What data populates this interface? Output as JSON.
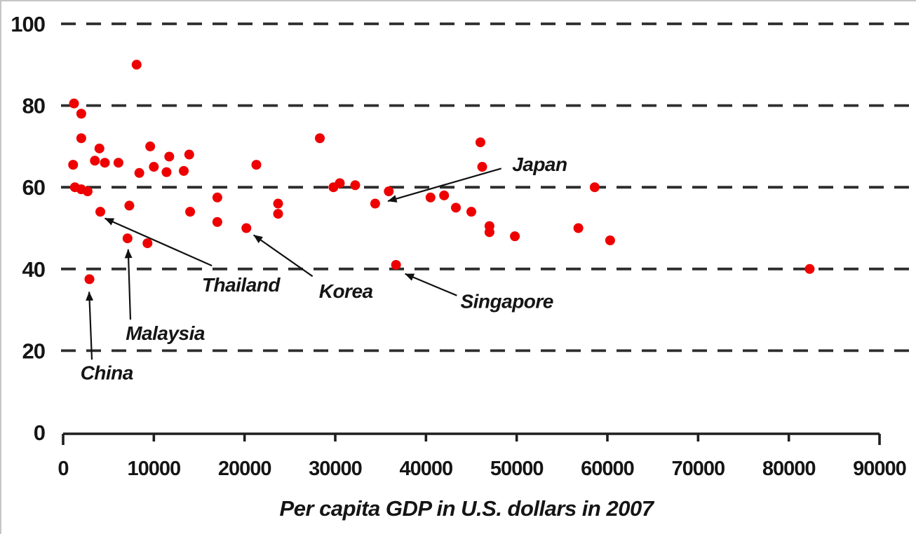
{
  "figure": {
    "background": "#ffffff",
    "edge_border_color": "#c6c6c6"
  },
  "chart_data": {
    "type": "scatter",
    "title": "",
    "xlabel": "Per capita GDP in U.S. dollars in 2007",
    "ylabel": "",
    "xlim": [
      0,
      90000
    ],
    "ylim": [
      0,
      100
    ],
    "x_ticks": [
      0,
      10000,
      20000,
      30000,
      40000,
      50000,
      60000,
      70000,
      80000,
      90000
    ],
    "y_ticks": [
      0,
      20,
      40,
      60,
      80,
      100
    ],
    "grid": {
      "horizontal": true,
      "style": "dashed",
      "color": "#2e2e2e",
      "skip_at": 0
    },
    "axis_color": "#1f1f1f",
    "arrow_color": "#111111",
    "point_color": "#ee0000",
    "point_radius": 7,
    "points": [
      [
        1200,
        80.5
      ],
      [
        2000,
        78
      ],
      [
        2000,
        72
      ],
      [
        4000,
        69.5
      ],
      [
        9600,
        70
      ],
      [
        8100,
        90
      ],
      [
        1100,
        65.5
      ],
      [
        3500,
        66.5
      ],
      [
        4600,
        66
      ],
      [
        6100,
        66
      ],
      [
        11700,
        67.5
      ],
      [
        13900,
        68
      ],
      [
        10000,
        65
      ],
      [
        8400,
        63.5
      ],
      [
        11400,
        63.7
      ],
      [
        13300,
        64
      ],
      [
        21300,
        65.5
      ],
      [
        1300,
        60
      ],
      [
        2000,
        59.5
      ],
      [
        2700,
        59
      ],
      [
        7300,
        55.5
      ],
      [
        4100,
        54
      ],
      [
        14000,
        54
      ],
      [
        17000,
        57.5
      ],
      [
        17000,
        51.5
      ],
      [
        20200,
        50
      ],
      [
        23700,
        56
      ],
      [
        23700,
        53.5
      ],
      [
        2900,
        37.5
      ],
      [
        7100,
        47.5
      ],
      [
        9300,
        46.3
      ],
      [
        28300,
        72
      ],
      [
        29800,
        60
      ],
      [
        30500,
        61
      ],
      [
        32200,
        60.5
      ],
      [
        34400,
        56
      ],
      [
        35900,
        59
      ],
      [
        36700,
        41
      ],
      [
        40500,
        57.5
      ],
      [
        42000,
        58
      ],
      [
        43300,
        55
      ],
      [
        45000,
        54
      ],
      [
        46000,
        71
      ],
      [
        46200,
        65
      ],
      [
        47000,
        50.5
      ],
      [
        47000,
        49
      ],
      [
        49800,
        48
      ],
      [
        56800,
        50
      ],
      [
        58600,
        60
      ],
      [
        60300,
        47
      ],
      [
        82300,
        40
      ]
    ],
    "annotations": [
      {
        "label": "Japan",
        "point": [
          34400,
          56
        ],
        "text_anchor": [
          49500,
          65.5
        ],
        "arrow": {
          "from": [
            48300,
            64.6
          ],
          "to": [
            35800,
            56.6
          ]
        }
      },
      {
        "label": "Thailand",
        "point": [
          4100,
          54
        ],
        "text_anchor": [
          15300,
          36.0
        ],
        "arrow": {
          "from": [
            16400,
            40.8
          ],
          "to": [
            4600,
            52.4
          ]
        }
      },
      {
        "label": "Korea",
        "point": [
          20200,
          50
        ],
        "text_anchor": [
          28200,
          34.5
        ],
        "arrow": {
          "from": [
            27500,
            38.2
          ],
          "to": [
            21000,
            48.3
          ]
        }
      },
      {
        "label": "Singapore",
        "point": [
          36700,
          41
        ],
        "text_anchor": [
          43800,
          32.0
        ],
        "arrow": {
          "from": [
            43400,
            33.5
          ],
          "to": [
            37700,
            38.8
          ]
        }
      },
      {
        "label": "Malaysia",
        "point": [
          7100,
          47.5
        ],
        "text_anchor": [
          6900,
          24.2
        ],
        "arrow": {
          "from": [
            7420,
            27.6
          ],
          "to": [
            7170,
            44.8
          ]
        }
      },
      {
        "label": "China",
        "point": [
          2900,
          37.5
        ],
        "text_anchor": [
          1900,
          14.5
        ],
        "arrow": {
          "from": [
            3170,
            17.8
          ],
          "to": [
            2870,
            34.4
          ]
        }
      }
    ]
  }
}
